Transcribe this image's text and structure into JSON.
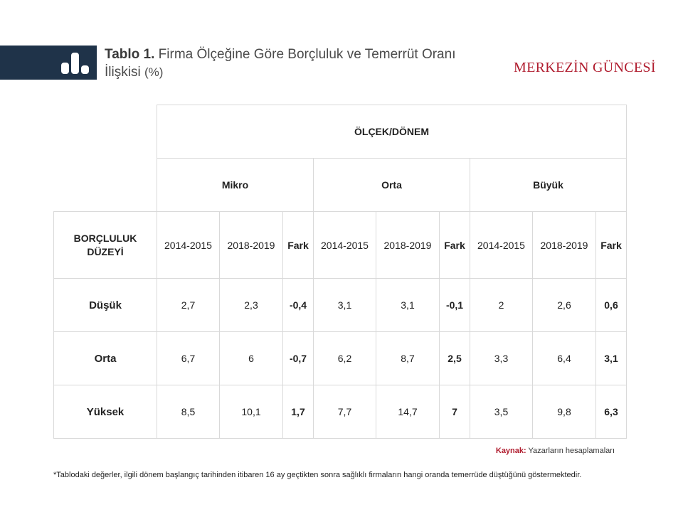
{
  "header": {
    "title_label": "Tablo 1.",
    "title_text": "Firma Ölçeğine Göre Borçluluk ve Temerrüt Oranı İlişkisi",
    "title_suffix": "(%)",
    "brand": "MERKEZİN GÜNCESİ",
    "logo_icon": "bar-chart-icon"
  },
  "table": {
    "group_header": "ÖLÇEK/DÖNEM",
    "row_header": "BORÇLULUK DÜZEYİ",
    "scales": [
      "Mikro",
      "Orta",
      "Büyük"
    ],
    "periods": [
      "2014-2015",
      "2018-2019",
      "Fark"
    ],
    "rows": [
      {
        "label": "Düşük",
        "values": [
          "2,7",
          "2,3",
          "-0,4",
          "3,1",
          "3,1",
          "-0,1",
          "2",
          "2,6",
          "0,6"
        ]
      },
      {
        "label": "Orta",
        "values": [
          "6,7",
          "6",
          "-0,7",
          "6,2",
          "8,7",
          "2,5",
          "3,3",
          "6,4",
          "3,1"
        ]
      },
      {
        "label": "Yüksek",
        "values": [
          "8,5",
          "10,1",
          "1,7",
          "7,7",
          "14,7",
          "7",
          "3,5",
          "9,8",
          "6,3"
        ]
      }
    ]
  },
  "source": {
    "label": "Kaynak:",
    "text": "Yazarların hesaplamaları"
  },
  "footnote": "*Tablodaki değerler, ilgili dönem başlangıç tarihinden itibaren 16 ay geçtikten sonra sağlıklı firmaların hangi oranda temerrüde düştüğünü göstermektedir."
}
